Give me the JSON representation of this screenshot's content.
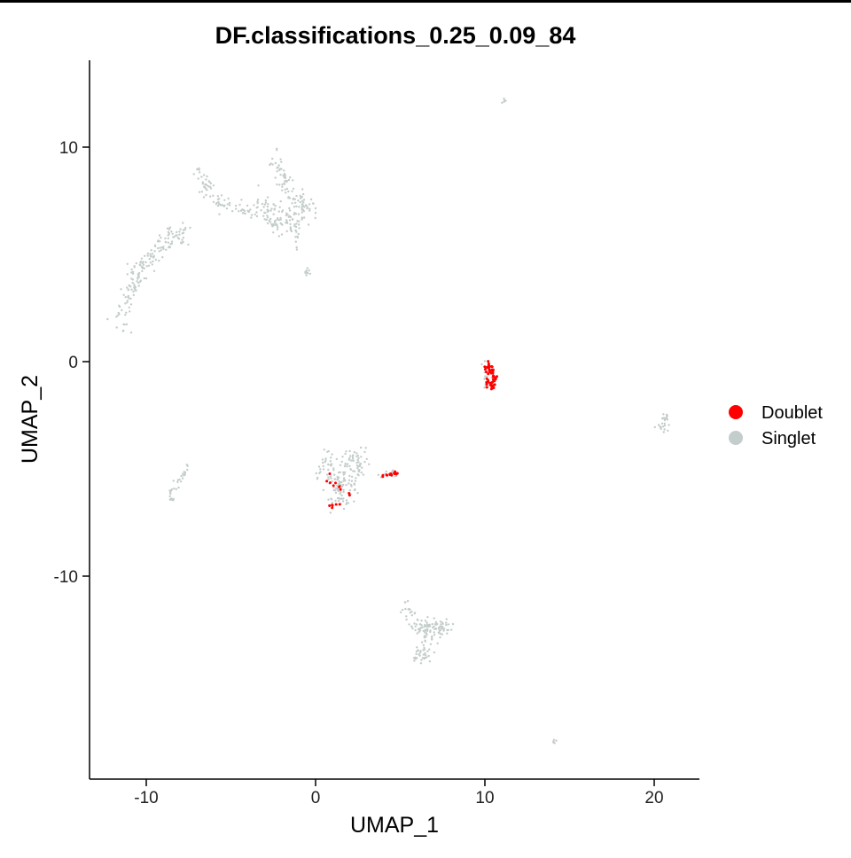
{
  "chart_data": {
    "type": "scatter",
    "title": "DF.classifications_0.25_0.09_84",
    "xlabel": "UMAP_1",
    "ylabel": "UMAP_2",
    "xlim": [
      -13.5,
      22.5
    ],
    "ylim": [
      -19.5,
      14.0
    ],
    "x_ticks": [
      {
        "value": -10,
        "label": "-10"
      },
      {
        "value": 0,
        "label": "0"
      },
      {
        "value": 10,
        "label": "10"
      },
      {
        "value": 20,
        "label": "20"
      }
    ],
    "y_ticks": [
      {
        "value": -10,
        "label": "-10"
      },
      {
        "value": 0,
        "label": "0"
      },
      {
        "value": 10,
        "label": "10"
      }
    ],
    "grid": false,
    "legend": {
      "position": "right",
      "entries": [
        {
          "key": "Doublet",
          "label": "Doublet",
          "color": "#FF0000"
        },
        {
          "key": "Singlet",
          "label": "Singlet",
          "color": "#C3CDCB"
        }
      ]
    },
    "series": [
      {
        "name": "Singlet",
        "color": "#C3CDCB",
        "clusters": [
          {
            "path": [
              [
                -11.6,
                1.6
              ],
              [
                -11.0,
                3.2
              ],
              [
                -10.4,
                4.2
              ],
              [
                -9.6,
                5.0
              ],
              [
                -8.6,
                5.8
              ],
              [
                -7.8,
                6.0
              ]
            ],
            "spread": 0.45,
            "count": 170
          },
          {
            "path": [
              [
                -7.0,
                8.9
              ],
              [
                -6.5,
                8.2
              ],
              [
                -6.0,
                7.8
              ],
              [
                -5.0,
                7.1
              ],
              [
                -4.0,
                7.0
              ],
              [
                -3.0,
                7.2
              ]
            ],
            "spread": 0.35,
            "count": 90
          },
          {
            "path": [
              [
                -3.2,
                7.6
              ],
              [
                -2.6,
                6.8
              ],
              [
                -2.0,
                6.3
              ],
              [
                -1.4,
                7.0
              ],
              [
                -0.8,
                7.4
              ],
              [
                -0.4,
                7.0
              ]
            ],
            "spread": 0.55,
            "count": 130
          },
          {
            "path": [
              [
                -2.5,
                9.8
              ],
              [
                -2.2,
                9.0
              ],
              [
                -1.8,
                8.4
              ],
              [
                -1.5,
                7.8
              ]
            ],
            "spread": 0.35,
            "count": 50
          },
          {
            "path": [
              [
                -1.1,
                5.2
              ],
              [
                -1.0,
                6.2
              ],
              [
                -1.2,
                6.8
              ]
            ],
            "spread": 0.2,
            "count": 18
          },
          {
            "path": [
              [
                -0.6,
                4.3
              ],
              [
                -0.4,
                4.0
              ]
            ],
            "spread": 0.15,
            "count": 10
          },
          {
            "path": [
              [
                11.0,
                12.0
              ],
              [
                11.3,
                12.4
              ]
            ],
            "spread": 0.08,
            "count": 5
          },
          {
            "path": [
              [
                -7.5,
                -4.8
              ],
              [
                -8.1,
                -5.7
              ],
              [
                -8.7,
                -6.1
              ],
              [
                -8.4,
                -6.6
              ]
            ],
            "spread": 0.12,
            "count": 32
          },
          {
            "path": [
              [
                0.5,
                -4.5
              ],
              [
                0.8,
                -5.2
              ],
              [
                1.4,
                -6.0
              ],
              [
                2.0,
                -5.6
              ],
              [
                2.6,
                -4.6
              ],
              [
                1.8,
                -4.6
              ],
              [
                1.0,
                -6.6
              ],
              [
                2.4,
                -6.4
              ]
            ],
            "spread": 0.45,
            "count": 170
          },
          {
            "path": [
              [
                3.8,
                -5.3
              ],
              [
                4.4,
                -5.1
              ],
              [
                5.0,
                -5.3
              ]
            ],
            "spread": 0.12,
            "count": 14
          },
          {
            "path": [
              [
                9.9,
                -0.1
              ],
              [
                10.2,
                -0.8
              ],
              [
                10.0,
                -1.2
              ]
            ],
            "spread": 0.15,
            "count": 14
          },
          {
            "path": [
              [
                20.4,
                -2.6
              ],
              [
                20.8,
                -2.6
              ],
              [
                20.6,
                -3.2
              ],
              [
                20.3,
                -2.9
              ]
            ],
            "spread": 0.2,
            "count": 26
          },
          {
            "path": [
              [
                5.3,
                -11.3
              ],
              [
                5.9,
                -12.2
              ],
              [
                6.6,
                -12.4
              ],
              [
                7.3,
                -12.2
              ],
              [
                7.7,
                -12.2
              ],
              [
                6.7,
                -13.4
              ],
              [
                6.0,
                -13.9
              ],
              [
                6.8,
                -11.9
              ]
            ],
            "spread": 0.35,
            "count": 150
          },
          {
            "path": [
              [
                14.0,
                -17.8
              ],
              [
                14.2,
                -17.6
              ]
            ],
            "spread": 0.06,
            "count": 5
          }
        ]
      },
      {
        "name": "Doublet",
        "color": "#FF0000",
        "clusters": [
          {
            "path": [
              [
                10.0,
                -0.2
              ],
              [
                10.4,
                -0.4
              ],
              [
                10.6,
                -0.9
              ],
              [
                10.4,
                -1.2
              ],
              [
                10.1,
                -0.8
              ],
              [
                10.3,
                -0.1
              ]
            ],
            "spread": 0.18,
            "count": 60
          },
          {
            "path": [
              [
                3.8,
                -5.4
              ],
              [
                4.2,
                -5.3
              ],
              [
                4.6,
                -5.2
              ],
              [
                4.9,
                -5.2
              ]
            ],
            "spread": 0.06,
            "count": 14
          },
          {
            "path": [
              [
                0.8,
                -5.1
              ],
              [
                0.9,
                -6.7
              ],
              [
                1.1,
                -6.8
              ],
              [
                2.0,
                -6.2
              ],
              [
                1.3,
                -5.8
              ],
              [
                0.6,
                -5.6
              ]
            ],
            "spread": 0.12,
            "count": 16
          }
        ]
      }
    ]
  }
}
